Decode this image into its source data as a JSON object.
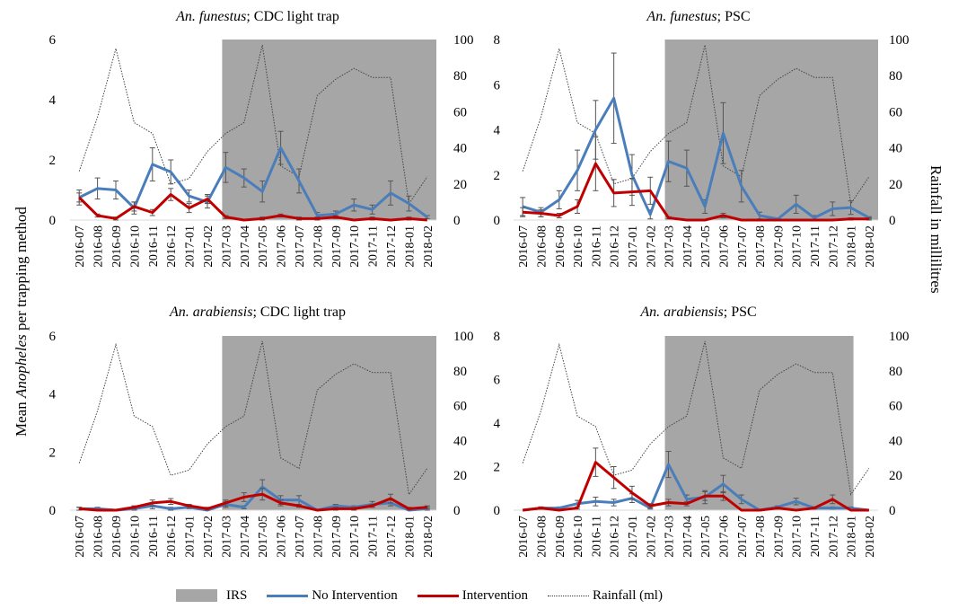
{
  "y_axis_left_label_parts": [
    "Mean ",
    "Anopheles",
    " per trapping method"
  ],
  "y_axis_right_label": "Rainfall in millilitres",
  "legend": {
    "irs": "IRS",
    "no_intervention": "No Intervention",
    "intervention": "Intervention",
    "rainfall": "Rainfall (ml)"
  },
  "colors": {
    "no_intervention": "#4a7ebb",
    "intervention": "#c00000",
    "irs": "#a6a6a6",
    "rainfall": "#444444"
  },
  "categories": [
    "2016-07",
    "2016-08",
    "2016-09",
    "2016-10",
    "2016-11",
    "2016-12",
    "2017-01",
    "2017-02",
    "2017-03",
    "2017-04",
    "2017-05",
    "2017-06",
    "2017-07",
    "2017-08",
    "2017-09",
    "2017-10",
    "2017-11",
    "2017-12",
    "2018-01",
    "2018-02"
  ],
  "rainfall": [
    27,
    57,
    95,
    54,
    48,
    20,
    23,
    38,
    48,
    54,
    97,
    30,
    24,
    69,
    78,
    84,
    79,
    79,
    9,
    24
  ],
  "chart_data": [
    {
      "type": "line",
      "title_italic": "An. funestus",
      "title_rest": "; CDC light trap",
      "ylim": [
        0,
        6
      ],
      "yticks": [
        0,
        2,
        4,
        6
      ],
      "y2lim": [
        0,
        100
      ],
      "y2ticks": [
        0,
        20,
        40,
        60,
        80,
        100
      ],
      "irs_range": [
        "2017-03",
        "2018-02"
      ],
      "series": [
        {
          "name": "No Intervention",
          "values": [
            0.75,
            1.05,
            1.0,
            0.4,
            1.85,
            1.6,
            0.8,
            0.6,
            1.75,
            1.4,
            0.95,
            2.4,
            1.3,
            0.15,
            0.2,
            0.5,
            0.35,
            0.9,
            0.55,
            0.1
          ],
          "errors": [
            0.25,
            0.35,
            0.3,
            0.2,
            0.55,
            0.4,
            0.2,
            0.2,
            0.5,
            0.3,
            0.35,
            0.55,
            0.4,
            0.1,
            0.1,
            0.2,
            0.15,
            0.4,
            0.25,
            0.05
          ]
        },
        {
          "name": "Intervention",
          "values": [
            0.75,
            0.15,
            0.05,
            0.45,
            0.25,
            0.85,
            0.4,
            0.7,
            0.1,
            0.0,
            0.05,
            0.15,
            0.05,
            0.05,
            0.1,
            0.0,
            0.05,
            0.0,
            0.05,
            0.0
          ],
          "errors": [
            0.15,
            0.05,
            0.05,
            0.15,
            0.1,
            0.2,
            0.15,
            0.15,
            0.05,
            0.0,
            0.05,
            0.05,
            0.05,
            0.05,
            0.05,
            0.0,
            0.05,
            0.0,
            0.05,
            0.0
          ]
        }
      ]
    },
    {
      "type": "line",
      "title_italic": "An. funestus",
      "title_rest": "; PSC",
      "ylim": [
        0,
        8
      ],
      "yticks": [
        0,
        2,
        4,
        6,
        8
      ],
      "y2lim": [
        0,
        100
      ],
      "y2ticks": [
        0,
        20,
        40,
        60,
        80,
        100
      ],
      "irs_range": [
        "2017-03",
        "2018-02"
      ],
      "series": [
        {
          "name": "No Intervention",
          "values": [
            0.6,
            0.35,
            0.9,
            2.2,
            4.0,
            5.4,
            2.0,
            0.25,
            2.6,
            2.3,
            0.6,
            3.85,
            1.5,
            0.2,
            0.05,
            0.7,
            0.1,
            0.5,
            0.55,
            0.1
          ],
          "errors": [
            0.4,
            0.2,
            0.4,
            0.9,
            1.3,
            2.0,
            0.9,
            0.2,
            0.9,
            0.8,
            0.3,
            1.35,
            0.7,
            0.15,
            0.05,
            0.4,
            0.1,
            0.3,
            0.3,
            0.05
          ]
        },
        {
          "name": "Intervention",
          "values": [
            0.35,
            0.3,
            0.2,
            0.6,
            2.5,
            1.2,
            1.25,
            1.3,
            0.1,
            0.0,
            0.0,
            0.2,
            0.0,
            0.0,
            0.0,
            0.0,
            0.0,
            0.0,
            0.05,
            0.05
          ],
          "errors": [
            0.2,
            0.15,
            0.1,
            0.3,
            1.2,
            0.6,
            0.6,
            0.6,
            0.05,
            0.0,
            0.0,
            0.1,
            0.0,
            0.0,
            0.0,
            0.0,
            0.0,
            0.0,
            0.05,
            0.05
          ]
        }
      ]
    },
    {
      "type": "line",
      "title_italic": "An. arabiensis",
      "title_rest": "; CDC light trap",
      "ylim": [
        0,
        6
      ],
      "yticks": [
        0,
        2,
        4,
        6
      ],
      "y2lim": [
        0,
        100
      ],
      "y2ticks": [
        0,
        20,
        40,
        60,
        80,
        100
      ],
      "irs_range": [
        "2017-03",
        "2018-02"
      ],
      "series": [
        {
          "name": "No Intervention",
          "values": [
            0.05,
            0.05,
            0.0,
            0.05,
            0.15,
            0.05,
            0.1,
            0.0,
            0.2,
            0.1,
            0.8,
            0.35,
            0.35,
            0.0,
            0.15,
            0.1,
            0.2,
            0.25,
            0.0,
            0.05
          ],
          "errors": [
            0.05,
            0.05,
            0.0,
            0.05,
            0.1,
            0.05,
            0.05,
            0.0,
            0.1,
            0.05,
            0.25,
            0.15,
            0.15,
            0.0,
            0.05,
            0.05,
            0.1,
            0.1,
            0.0,
            0.05
          ]
        },
        {
          "name": "Intervention",
          "values": [
            0.05,
            0.0,
            0.0,
            0.1,
            0.25,
            0.3,
            0.15,
            0.05,
            0.25,
            0.45,
            0.55,
            0.25,
            0.15,
            0.0,
            0.05,
            0.05,
            0.15,
            0.4,
            0.05,
            0.1
          ],
          "errors": [
            0.05,
            0.0,
            0.0,
            0.05,
            0.1,
            0.1,
            0.05,
            0.05,
            0.1,
            0.15,
            0.2,
            0.1,
            0.05,
            0.0,
            0.05,
            0.05,
            0.05,
            0.15,
            0.05,
            0.05
          ]
        }
      ]
    },
    {
      "type": "line",
      "title_italic": "An. arabiensis",
      "title_rest": "; PSC",
      "ylim": [
        0,
        8
      ],
      "yticks": [
        0,
        2,
        4,
        6,
        8
      ],
      "y2lim": [
        0,
        100
      ],
      "y2ticks": [
        0,
        20,
        40,
        60,
        80,
        100
      ],
      "irs_range": [
        "2017-03",
        "2018-01"
      ],
      "series": [
        {
          "name": "No Intervention",
          "values": [
            0.0,
            0.1,
            0.1,
            0.3,
            0.4,
            0.35,
            0.55,
            0.1,
            2.1,
            0.5,
            0.6,
            1.2,
            0.5,
            0.0,
            0.15,
            0.4,
            0.1,
            0.1,
            0.1,
            0.0
          ],
          "errors": [
            0.0,
            0.05,
            0.05,
            0.15,
            0.2,
            0.15,
            0.2,
            0.05,
            0.6,
            0.2,
            0.3,
            0.4,
            0.2,
            0.0,
            0.05,
            0.15,
            0.05,
            0.05,
            0.05,
            0.0
          ]
        },
        {
          "name": "Intervention",
          "values": [
            0.0,
            0.1,
            0.0,
            0.1,
            2.2,
            1.5,
            0.8,
            0.2,
            0.35,
            0.3,
            0.65,
            0.65,
            0.0,
            0.0,
            0.1,
            0.0,
            0.1,
            0.5,
            0.0,
            0.0
          ],
          "errors": [
            0.0,
            0.05,
            0.0,
            0.05,
            0.65,
            0.5,
            0.3,
            0.1,
            0.15,
            0.1,
            0.2,
            0.2,
            0.0,
            0.0,
            0.05,
            0.0,
            0.05,
            0.2,
            0.0,
            0.0
          ]
        }
      ]
    }
  ]
}
